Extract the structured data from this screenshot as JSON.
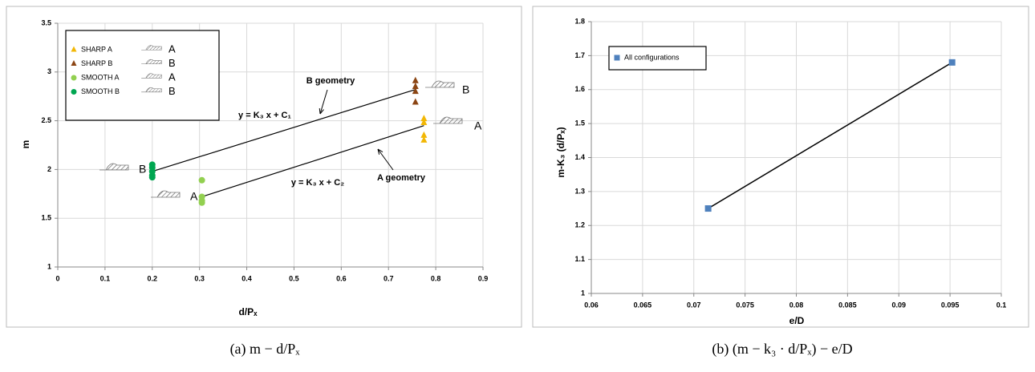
{
  "chart_data": [
    {
      "type": "scatter",
      "caption": "(a) m − d/Pₓ",
      "xlabel": "d/Pₓ",
      "ylabel": "m",
      "xlim": [
        0,
        0.9
      ],
      "xticks": [
        0,
        0.1,
        0.2,
        0.3,
        0.4,
        0.5,
        0.6,
        0.7,
        0.8,
        0.9
      ],
      "ylim": [
        1,
        3.5
      ],
      "yticks": [
        1,
        1.5,
        2,
        2.5,
        3,
        3.5
      ],
      "grid": true,
      "legend": "upper left",
      "series": [
        {
          "name": "SHARP A",
          "geometry": "A",
          "marker": "triangle",
          "color": "#f2b705",
          "x": [
            0.775,
            0.775,
            0.775,
            0.775
          ],
          "values": [
            2.52,
            2.48,
            2.35,
            2.3
          ]
        },
        {
          "name": "SHARP B",
          "geometry": "B",
          "marker": "triangle",
          "color": "#8b4513",
          "x": [
            0.757,
            0.757,
            0.757,
            0.757
          ],
          "values": [
            2.91,
            2.85,
            2.8,
            2.69
          ]
        },
        {
          "name": "SMOOTH A",
          "geometry": "A",
          "marker": "circle",
          "color": "#92d050",
          "x": [
            0.305,
            0.305,
            0.305,
            0.305
          ],
          "values": [
            1.89,
            1.72,
            1.68,
            1.66
          ]
        },
        {
          "name": "SMOOTH B",
          "geometry": "B",
          "marker": "circle",
          "color": "#00a651",
          "x": [
            0.2,
            0.2,
            0.2,
            0.2,
            0.2
          ],
          "values": [
            2.05,
            2.02,
            1.98,
            1.94,
            1.92
          ]
        }
      ],
      "fit_lines": [
        {
          "x": [
            0.2,
            0.757
          ],
          "values": [
            1.98,
            2.82
          ]
        },
        {
          "x": [
            0.305,
            0.775
          ],
          "values": [
            1.72,
            2.45
          ]
        }
      ],
      "annotations": [
        "B geometry",
        "A geometry",
        "y = K₃ x + C₁",
        "y = K₃ x + C₂",
        "B",
        "A",
        "B",
        "A"
      ]
    },
    {
      "type": "scatter",
      "caption": "(b) (m − k₃ · d/Pₓ) − e/D",
      "xlabel": "e/D",
      "ylabel": "m-K₃ (d/Pₓ)",
      "xlim": [
        0.06,
        0.1
      ],
      "xticks": [
        0.06,
        0.065,
        0.07,
        0.075,
        0.08,
        0.085,
        0.09,
        0.095,
        0.1
      ],
      "ylim": [
        1,
        1.8
      ],
      "yticks": [
        1,
        1.1,
        1.2,
        1.3,
        1.4,
        1.5,
        1.6,
        1.7,
        1.8
      ],
      "grid": true,
      "legend": "upper left",
      "connect": true,
      "series": [
        {
          "name": "All configurations",
          "marker": "square",
          "color": "#4f81bd",
          "x": [
            0.0714,
            0.0952
          ],
          "values": [
            1.25,
            1.68
          ]
        }
      ]
    }
  ]
}
